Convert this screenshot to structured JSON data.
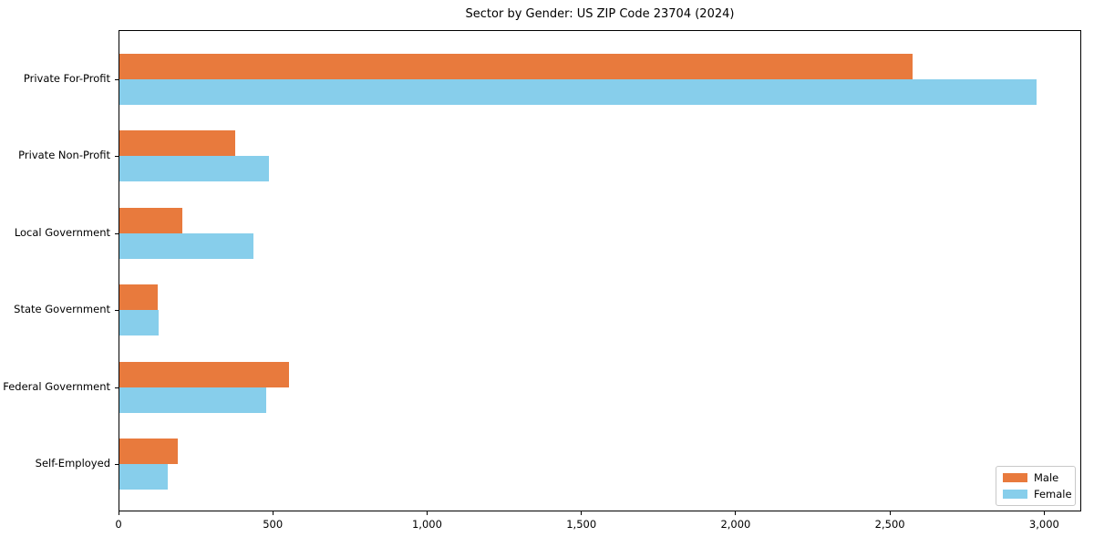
{
  "chart_data": {
    "type": "bar",
    "orientation": "horizontal",
    "title": "Sector by Gender: US ZIP Code 23704 (2024)",
    "categories": [
      "Private For-Profit",
      "Private Non-Profit",
      "Local Government",
      "State Government",
      "Federal Government",
      "Self-Employed"
    ],
    "series": [
      {
        "name": "Male",
        "color": "#e87a3d",
        "values": [
          2570,
          374,
          205,
          123,
          551,
          188
        ]
      },
      {
        "name": "Female",
        "color": "#87ceeb",
        "values": [
          2971,
          486,
          433,
          126,
          475,
          158
        ]
      }
    ],
    "xlabel": "",
    "ylabel": "",
    "xlim": [
      0,
      3120
    ],
    "xticks": [
      0,
      500,
      1000,
      1500,
      2000,
      2500,
      3000
    ],
    "xtick_labels": [
      "0",
      "500",
      "1,000",
      "1,500",
      "2,000",
      "2,500",
      "3,000"
    ],
    "grid": false,
    "legend": {
      "position": "lower right"
    }
  }
}
